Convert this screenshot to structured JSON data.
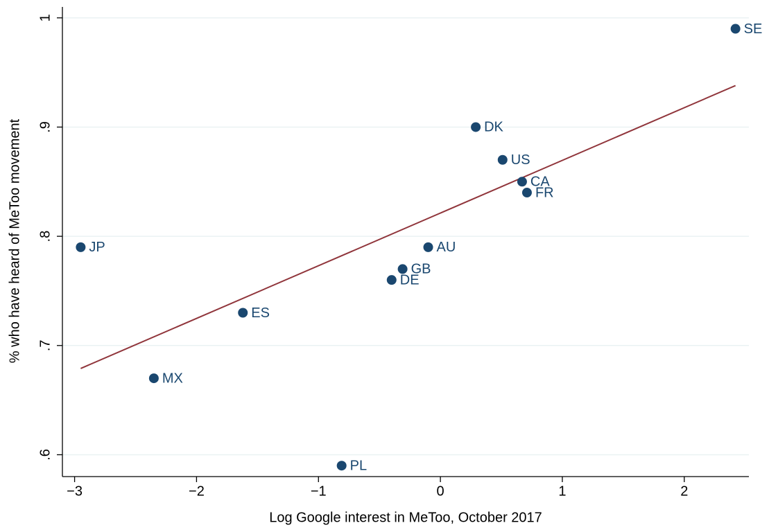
{
  "chart_data": {
    "type": "scatter",
    "xlabel": "Log Google interest in MeToo, October 2017",
    "ylabel": "% who have heard of MeToo movement",
    "xlim": [
      -3.1,
      2.53
    ],
    "ylim": [
      0.58,
      1.01
    ],
    "xticks": [
      {
        "value": -3,
        "label": "−3"
      },
      {
        "value": -2,
        "label": "−2"
      },
      {
        "value": -1,
        "label": "−1"
      },
      0,
      1,
      2
    ],
    "yticks": [
      {
        "value": 0.6,
        "label": ".6"
      },
      {
        "value": 0.7,
        "label": ".7"
      },
      {
        "value": 0.8,
        "label": ".8"
      },
      {
        "value": 0.9,
        "label": ".9"
      },
      1
    ],
    "grid": true,
    "series": [
      {
        "color": "#1a476f",
        "labels": [
          "SE",
          "DK",
          "US",
          "CA",
          "FR",
          "AU",
          "GB",
          "DE",
          "ES",
          "JP",
          "MX",
          "PL"
        ],
        "x": [
          2.42,
          0.29,
          0.51,
          0.67,
          0.71,
          -0.1,
          -0.31,
          -0.4,
          -1.62,
          -2.95,
          -2.35,
          -0.81
        ],
        "values": [
          0.99,
          0.9,
          0.87,
          0.85,
          0.84,
          0.79,
          0.77,
          0.76,
          0.73,
          0.79,
          0.67,
          0.59
        ]
      }
    ],
    "fit": {
      "color": "#90353b",
      "x": [
        -2.95,
        2.42
      ],
      "values": [
        0.679,
        0.938
      ]
    }
  }
}
